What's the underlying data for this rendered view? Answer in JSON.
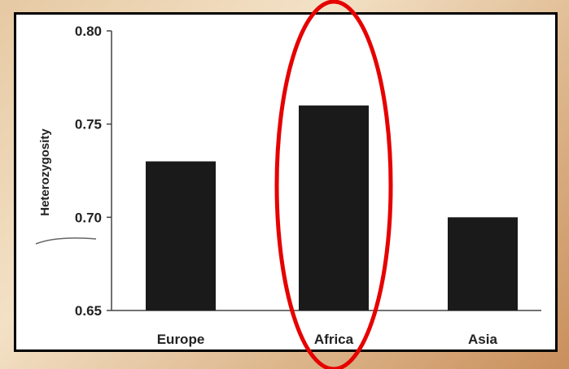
{
  "chart_data": {
    "type": "bar",
    "title": "",
    "xlabel": "",
    "ylabel": "Heterozygosity",
    "ylim": [
      0.65,
      0.8
    ],
    "yticks": [
      "0.80",
      "0.75",
      "0.70",
      "0.65"
    ],
    "categories": [
      "Europe",
      "Africa",
      "Asia"
    ],
    "values": [
      0.73,
      0.76,
      0.7
    ],
    "bar_color": "#1a1a1a",
    "highlight": {
      "category": "Africa",
      "shape": "ellipse",
      "color": "#e60000"
    },
    "grid": false
  }
}
